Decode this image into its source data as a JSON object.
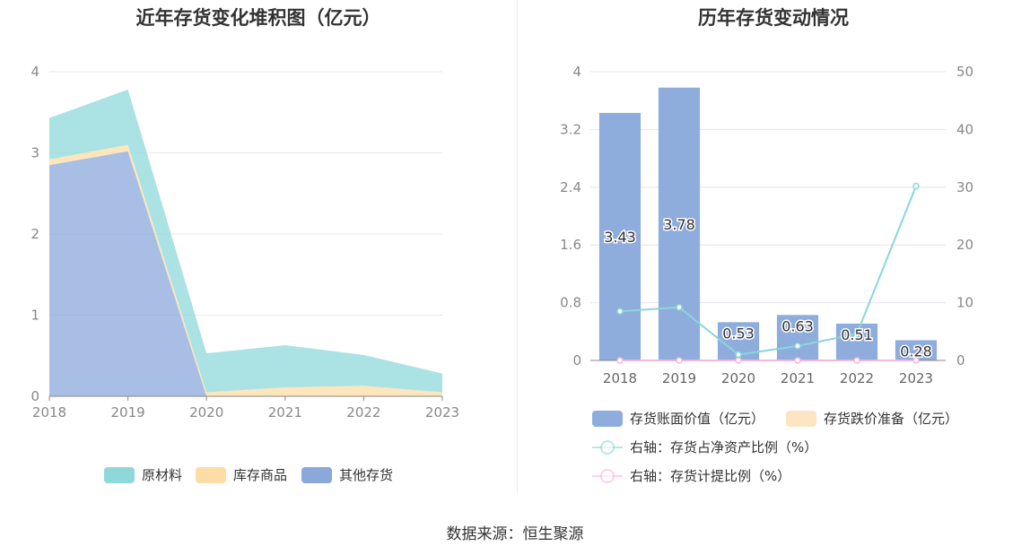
{
  "source_text": "数据来源：恒生聚源",
  "chart_data": [
    {
      "type": "area",
      "stacked": true,
      "title": "近年存货变化堆积图（亿元）",
      "categories": [
        "2018",
        "2019",
        "2020",
        "2021",
        "2022",
        "2023"
      ],
      "ylim": [
        0,
        4
      ],
      "yticks": [
        "0",
        "1",
        "2",
        "3",
        "4"
      ],
      "grid": true,
      "legend_position": "bottom",
      "series": [
        {
          "name": "其他存货",
          "color": "#8ba8db",
          "values": [
            2.85,
            3.02,
            0.0,
            0.0,
            0.0,
            0.0
          ]
        },
        {
          "name": "库存商品",
          "color": "#fddda5",
          "values": [
            0.07,
            0.08,
            0.05,
            0.11,
            0.13,
            0.05
          ]
        },
        {
          "name": "原材料",
          "color": "#8fd8da",
          "values": [
            0.51,
            0.68,
            0.48,
            0.52,
            0.38,
            0.23
          ]
        }
      ],
      "legend_order": [
        "原材料",
        "库存商品",
        "其他存货"
      ]
    },
    {
      "type": "bar",
      "title": "历年存货变动情况",
      "categories": [
        "2018",
        "2019",
        "2020",
        "2021",
        "2022",
        "2023"
      ],
      "ylim": [
        0,
        4
      ],
      "yticks": [
        "0",
        "0.8",
        "1.6",
        "2.4",
        "3.2",
        "4"
      ],
      "y2lim": [
        0,
        50
      ],
      "y2ticks": [
        "0",
        "10",
        "20",
        "30",
        "40",
        "50"
      ],
      "grid": true,
      "legend_position": "bottom",
      "series": [
        {
          "name": "存货账面价值（亿元）",
          "type": "bar",
          "color": "#8eaddc",
          "values": [
            3.43,
            3.78,
            0.53,
            0.63,
            0.51,
            0.28
          ],
          "labels": [
            "3.43",
            "3.78",
            "0.53",
            "0.63",
            "0.51",
            "0.28"
          ]
        },
        {
          "name": "存货跌价准备（亿元）",
          "type": "bar",
          "color": "#fde5c4",
          "values": [
            0,
            0,
            0,
            0,
            0,
            0
          ]
        },
        {
          "name": "右轴：存货占净资产比例（%）",
          "type": "line",
          "axis": "right",
          "color": "#8ad6d9",
          "values": [
            8.5,
            9.2,
            1.0,
            2.5,
            4.6,
            30.2
          ]
        },
        {
          "name": "右轴：存货计提比例（%）",
          "type": "line",
          "axis": "right",
          "color": "#f2b6e0",
          "values": [
            0,
            0,
            0,
            0,
            0,
            0
          ]
        }
      ]
    }
  ]
}
